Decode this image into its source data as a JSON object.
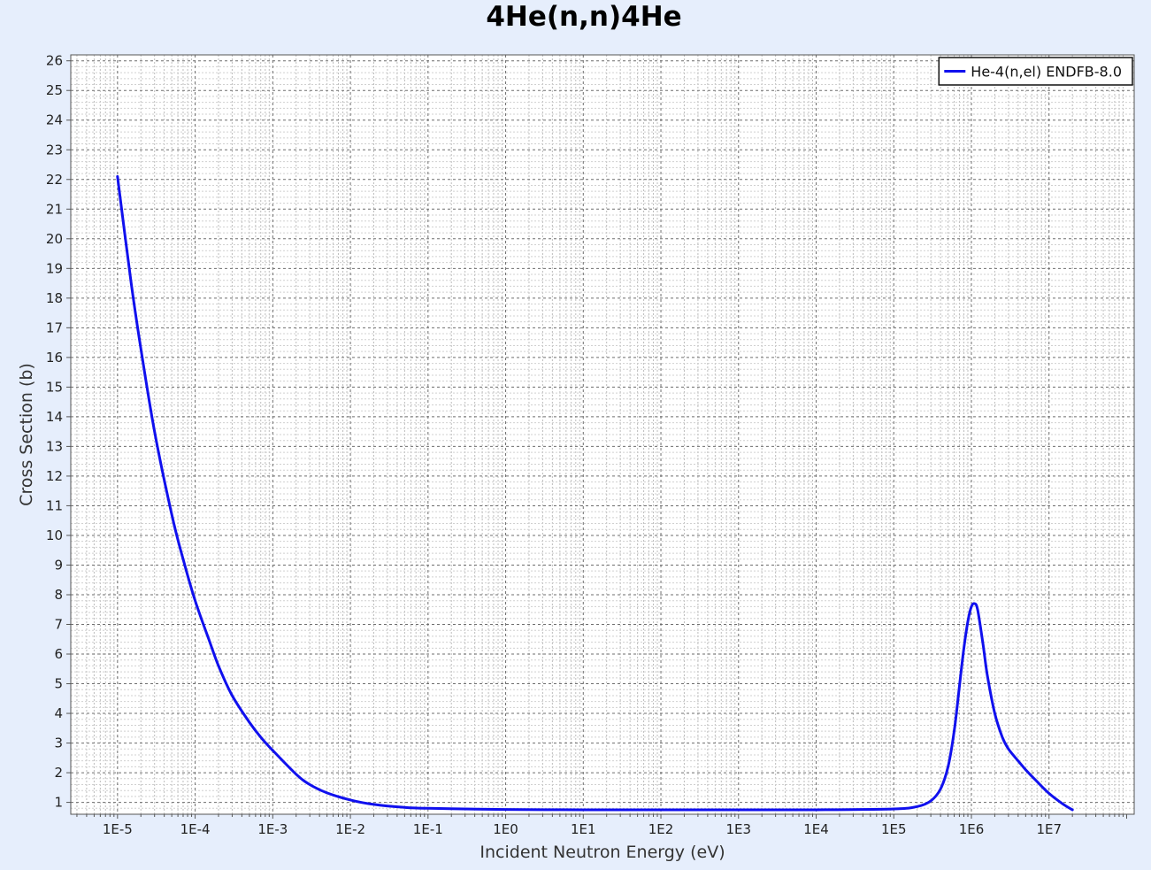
{
  "chart_data": {
    "type": "line",
    "title": "4He(n,n)4He",
    "xlabel": "Incident Neutron Energy (eV)",
    "ylabel": "Cross Section (b)",
    "x_scale": "log",
    "xlim": [
      2.5e-06,
      125000000.0
    ],
    "ylim": [
      0.6,
      26.2
    ],
    "x_ticks": [
      1e-05,
      0.0001,
      0.001,
      0.01,
      0.1,
      1,
      10,
      100,
      1000,
      10000,
      100000,
      1000000,
      10000000
    ],
    "x_tick_labels": [
      "1E-5",
      "1E-4",
      "1E-3",
      "1E-2",
      "1E-1",
      "1E0",
      "1E1",
      "1E2",
      "1E3",
      "1E4",
      "1E5",
      "1E6",
      "1E7"
    ],
    "y_ticks": [
      1,
      2,
      3,
      4,
      5,
      6,
      7,
      8,
      9,
      10,
      11,
      12,
      13,
      14,
      15,
      16,
      17,
      18,
      19,
      20,
      21,
      22,
      23,
      24,
      25,
      26
    ],
    "y_tick_labels": [
      "1",
      "2",
      "3",
      "4",
      "5",
      "6",
      "7",
      "8",
      "9",
      "10",
      "11",
      "12",
      "13",
      "14",
      "15",
      "16",
      "17",
      "18",
      "19",
      "20",
      "21",
      "22",
      "23",
      "24",
      "25",
      "26"
    ],
    "grid": true,
    "legend_position": "top-right",
    "series": [
      {
        "name": "He-4(n,el) ENDFB-8.0",
        "color": "#1010ee",
        "x": [
          1e-05,
          1.5e-05,
          2e-05,
          3e-05,
          5e-05,
          7e-05,
          0.0001,
          0.00015,
          0.0002,
          0.0003,
          0.0005,
          0.0007,
          0.001,
          0.002,
          0.003,
          0.005,
          0.01,
          0.02,
          0.05,
          0.1,
          1,
          10,
          100,
          1000,
          10000,
          100000,
          200000,
          300000,
          400000,
          500000,
          600000,
          700000,
          800000,
          900000,
          1000000,
          1100000,
          1200000,
          1400000,
          1600000,
          2000000,
          2500000,
          3000000,
          4000000,
          5000000,
          7000000,
          10000000.0,
          15000000.0,
          20000000.0
        ],
        "values": [
          22.1,
          18.5,
          16.3,
          13.5,
          10.7,
          9.2,
          7.8,
          6.5,
          5.6,
          4.6,
          3.7,
          3.2,
          2.75,
          1.95,
          1.6,
          1.32,
          1.08,
          0.93,
          0.83,
          0.8,
          0.76,
          0.75,
          0.75,
          0.75,
          0.75,
          0.78,
          0.86,
          1.05,
          1.45,
          2.2,
          3.4,
          4.9,
          6.2,
          7.1,
          7.6,
          7.7,
          7.5,
          6.4,
          5.3,
          4.0,
          3.2,
          2.8,
          2.4,
          2.1,
          1.7,
          1.3,
          0.95,
          0.75
        ]
      }
    ]
  }
}
